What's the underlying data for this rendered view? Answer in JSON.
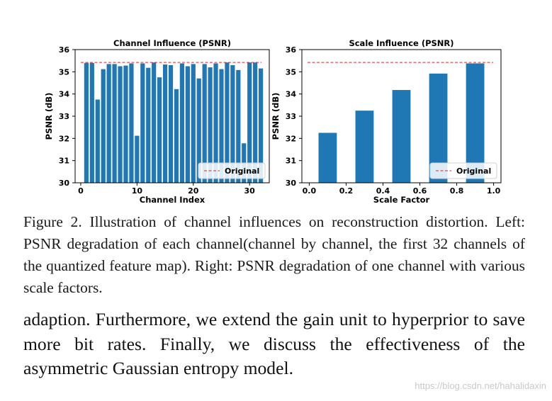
{
  "chart_data": [
    {
      "type": "bar",
      "title": "Channel Influence (PSNR)",
      "xlabel": "Channel Index",
      "ylabel": "PSNR (dB)",
      "ylim": [
        30,
        36
      ],
      "xlim": [
        -1,
        33.5
      ],
      "xticks": [
        0,
        10,
        20,
        30
      ],
      "yticks": [
        30,
        31,
        32,
        33,
        34,
        35,
        36
      ],
      "x": [
        1,
        2,
        3,
        4,
        5,
        6,
        7,
        8,
        9,
        10,
        11,
        12,
        13,
        14,
        15,
        16,
        17,
        18,
        19,
        20,
        21,
        22,
        23,
        24,
        25,
        26,
        27,
        28,
        29,
        30,
        31,
        32
      ],
      "values": [
        35.4,
        35.4,
        33.75,
        35.12,
        35.35,
        35.35,
        35.25,
        35.28,
        35.38,
        32.12,
        35.38,
        35.18,
        35.42,
        34.75,
        35.33,
        35.3,
        34.22,
        35.38,
        35.25,
        35.35,
        34.7,
        35.35,
        35.2,
        35.38,
        35.12,
        35.42,
        35.3,
        35.08,
        31.78,
        35.42,
        35.42,
        35.15
      ],
      "reference": {
        "name": "Original",
        "value": 35.42
      },
      "legend": "bottom-right",
      "grid": false
    },
    {
      "type": "bar",
      "title": "Scale Influence (PSNR)",
      "xlabel": "Scale Factor",
      "ylabel": "PSNR (dB)",
      "ylim": [
        30,
        36
      ],
      "xlim": [
        -0.04,
        1.04
      ],
      "xticks": [
        0.0,
        0.2,
        0.4,
        0.6,
        0.8,
        1.0
      ],
      "xtick_labels": [
        "0.0",
        "0.2",
        "0.4",
        "0.6",
        "0.8",
        "1.0"
      ],
      "yticks": [
        30,
        31,
        32,
        33,
        34,
        35,
        36
      ],
      "x": [
        0.1,
        0.3,
        0.5,
        0.7,
        0.9
      ],
      "values": [
        32.25,
        33.25,
        34.18,
        34.92,
        35.38
      ],
      "reference": {
        "name": "Original",
        "value": 35.42
      },
      "legend": "bottom-right",
      "grid": false
    }
  ],
  "caption": "Figure 2. Illustration of channel influences on reconstruction distortion. Left: PSNR degradation of each channel(channel by channel, the first 32 channels of the quantized feature map). Right: PSNR degradation of one channel with various scale factors.",
  "body": "adaption. Furthermore, we extend the gain unit to hyperprior to save more bit rates. Finally, we discuss the effectiveness of the asymmetric Gaussian entropy model.",
  "watermark": "https://blog.csdn.net/hahalidaxin",
  "colors": {
    "bar": "#1f77b4",
    "reference": "#d62728",
    "axis": "#000000"
  }
}
